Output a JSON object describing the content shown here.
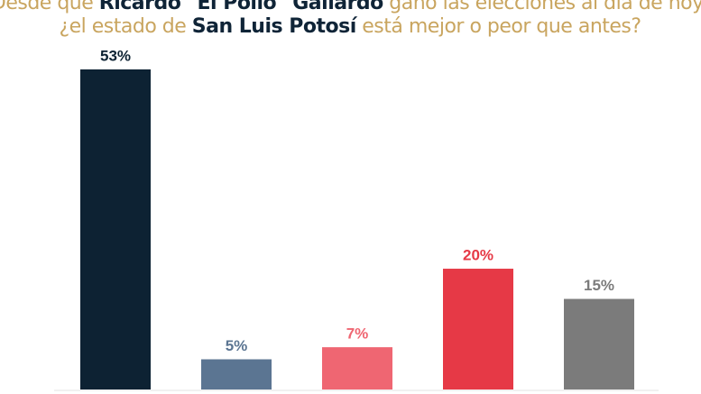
{
  "chart_data": {
    "type": "bar",
    "title_lines": [
      [
        {
          "text": "Desde que ",
          "emphasis": false
        },
        {
          "text": "Ricardo \"El Pollo\" Gallardo",
          "emphasis": true
        },
        {
          "text": " ganó las elecciones al día de hoy,",
          "emphasis": false
        }
      ],
      [
        {
          "text": "¿el estado de ",
          "emphasis": false
        },
        {
          "text": "San Luis Potosí",
          "emphasis": true
        },
        {
          "text": " está mejor o peor que antes?",
          "emphasis": false
        }
      ]
    ],
    "title_color": "#c9a55f",
    "title_emphasis_color": "#0f2437",
    "categories": [
      null,
      null,
      null,
      null,
      null
    ],
    "values": [
      53,
      5,
      7,
      20,
      15
    ],
    "value_labels": [
      "53%",
      "5%",
      "7%",
      "20%",
      "15%"
    ],
    "colors": [
      "#0d2233",
      "#5b7592",
      "#ef6672",
      "#e63946",
      "#7b7b7b"
    ]
  }
}
